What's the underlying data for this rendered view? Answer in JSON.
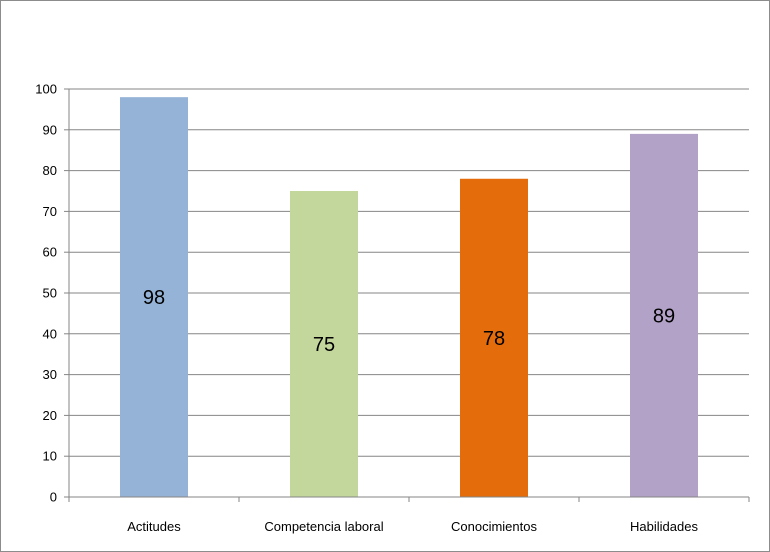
{
  "chart_data": {
    "type": "bar",
    "title": "",
    "xlabel": "",
    "ylabel": "",
    "categories": [
      "Actitudes",
      "Competencia laboral",
      "Conocimientos",
      "Habilidades"
    ],
    "values": [
      98,
      75,
      78,
      89
    ],
    "data_labels": [
      "98",
      "75",
      "78",
      "89"
    ],
    "ylim": [
      0,
      100
    ],
    "yticks": [
      0,
      10,
      20,
      30,
      40,
      50,
      60,
      70,
      80,
      90,
      100
    ],
    "grid": true,
    "legend": "none",
    "colors": [
      "#95b3d7",
      "#c3d69b",
      "#e46c0a",
      "#b2a2c7"
    ],
    "gridline_color": "#868686"
  }
}
